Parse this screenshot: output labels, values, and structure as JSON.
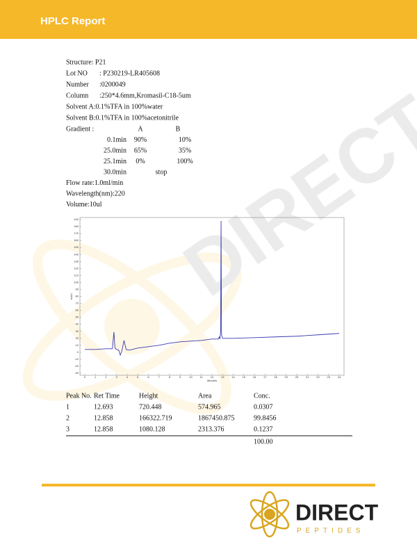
{
  "header": {
    "title": "HPLC Report"
  },
  "info": {
    "structure": "Structure: P21",
    "fields": [
      [
        "Lot NO",
        ": P230219-LR405608"
      ],
      [
        "Number",
        ":0200049"
      ],
      [
        "Column",
        ":250*4.6mm,Kromasil-C18-5um"
      ]
    ],
    "solvents": [
      "Solvent A:0.1%TFA in 100%water",
      "Solvent B:0.1%TFA in 100%acetonitrile"
    ],
    "gradient": {
      "label": "Gradient :",
      "columns": [
        "A",
        "B"
      ],
      "rows": [
        [
          "0.1min",
          "90%",
          "10%"
        ],
        [
          "25.0min",
          "65%",
          "35%"
        ],
        [
          "25.1min",
          "0%",
          "100%"
        ],
        [
          "30.0min",
          "stop"
        ]
      ]
    },
    "after": [
      "Flow rate:1.0ml/min",
      "Wavelength(nm):220",
      "Volume:10ul"
    ]
  },
  "chart_data": {
    "type": "line",
    "xlabel": "Minutes",
    "ylabel": "mAU",
    "color": "#3a3ab0",
    "x": [
      0,
      1,
      2,
      2.6,
      2.75,
      2.85,
      3.0,
      3.2,
      3.35,
      3.5,
      3.7,
      3.9,
      4.2,
      5,
      6,
      7,
      8,
      9,
      10,
      11,
      12,
      12.6,
      12.69,
      12.75,
      12.82,
      12.858,
      12.9,
      13.0,
      14,
      16,
      18,
      20,
      22,
      24
    ],
    "values": [
      4,
      4,
      5,
      5,
      29,
      6,
      4,
      3,
      -4,
      2,
      17,
      4,
      3,
      6,
      8,
      10,
      13,
      15,
      16,
      17,
      19,
      19,
      22,
      19,
      30,
      188,
      25,
      20,
      20,
      21,
      22,
      23,
      25,
      27
    ],
    "xlim": [
      0,
      24
    ],
    "xticks": [
      0,
      1,
      2,
      3,
      4,
      5,
      6,
      7,
      8,
      9,
      10,
      11,
      12,
      13,
      14,
      15,
      16,
      17,
      18,
      19,
      20,
      21,
      22,
      23,
      24
    ],
    "ylim": [
      -30,
      190
    ],
    "yticks": [
      -30,
      -20,
      -10,
      0,
      10,
      20,
      30,
      40,
      50,
      60,
      70,
      80,
      90,
      100,
      110,
      120,
      130,
      140,
      150,
      160,
      170,
      180,
      190
    ]
  },
  "table": {
    "headers": [
      "Peak No.",
      "Ret Time",
      "Height",
      "Area",
      "Conc."
    ],
    "rows": [
      [
        "1",
        "12.693",
        "720.448",
        "574.965",
        "0.0307"
      ],
      [
        "2",
        "12.858",
        "166322.719",
        "1867450.875",
        "99.8456"
      ],
      [
        "3",
        "12.858",
        "1080.128",
        "2313.376",
        "0.1237"
      ]
    ],
    "total": "100.00"
  },
  "logo": {
    "name": "DIRECT",
    "tagline": "PEPTIDES"
  }
}
